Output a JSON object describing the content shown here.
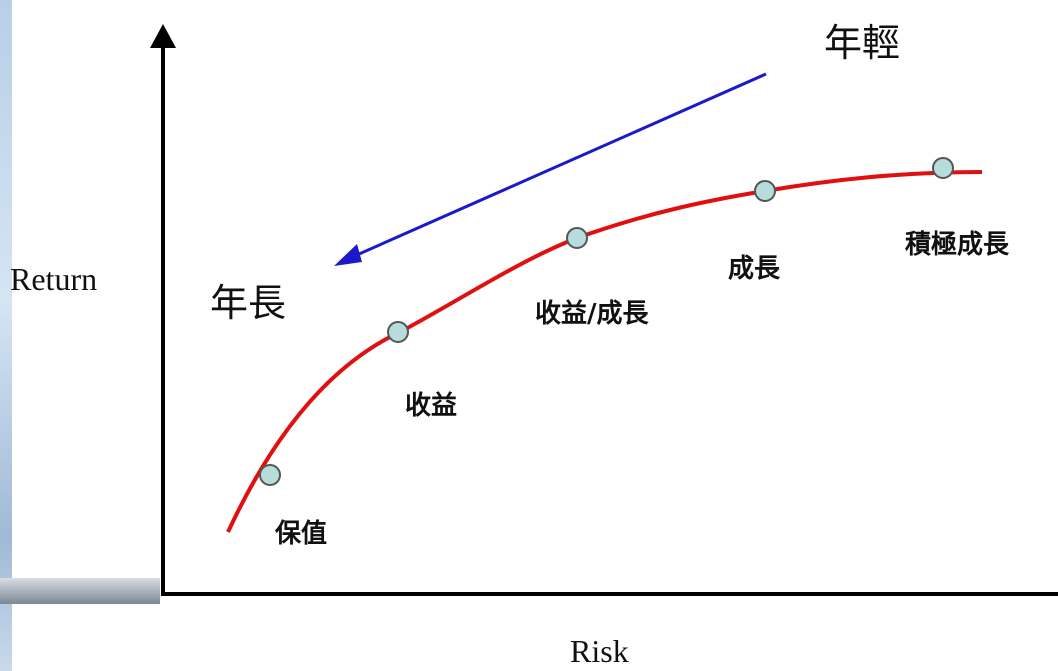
{
  "labels": {
    "y_axis": "Return",
    "x_axis": "Risk",
    "young": "年輕",
    "old": "年長"
  },
  "stages": [
    {
      "label": "保值"
    },
    {
      "label": "收益"
    },
    {
      "label": "收益/成長"
    },
    {
      "label": "成長"
    },
    {
      "label": "積極成長"
    }
  ],
  "colors": {
    "curve": "#e01010",
    "arrow": "#1a1acc",
    "point_fill": "#b7dcdc",
    "point_stroke": "#555555",
    "axis": "#000000"
  }
}
